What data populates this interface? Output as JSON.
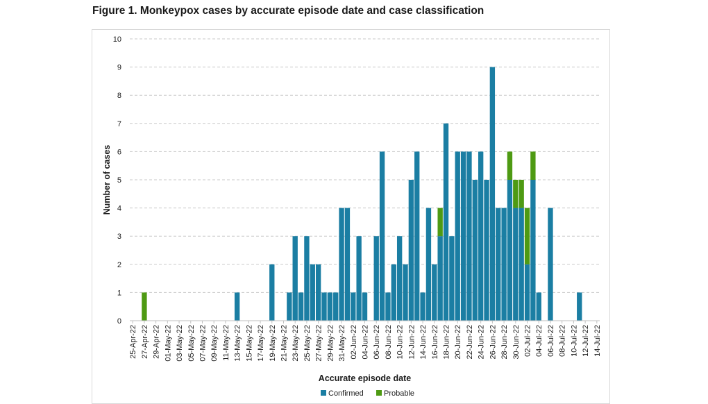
{
  "title": "Figure 1. Monkeypox cases by accurate episode date and case classification",
  "chart_data": {
    "type": "bar",
    "stacked": true,
    "title": "Figure 1. Monkeypox cases by accurate episode date and case classification",
    "xlabel": "Accurate episode date",
    "ylabel": "Number of cases",
    "ylim": [
      0,
      10
    ],
    "yticks": [
      0,
      1,
      2,
      3,
      4,
      5,
      6,
      7,
      8,
      9,
      10
    ],
    "grid": true,
    "legend_position": "bottom",
    "colors": {
      "Confirmed": "#1b7ea3",
      "Probable": "#4e9a13"
    },
    "categories": [
      "25-Apr-22",
      "26-Apr-22",
      "27-Apr-22",
      "28-Apr-22",
      "29-Apr-22",
      "30-Apr-22",
      "01-May-22",
      "02-May-22",
      "03-May-22",
      "04-May-22",
      "05-May-22",
      "06-May-22",
      "07-May-22",
      "08-May-22",
      "09-May-22",
      "10-May-22",
      "11-May-22",
      "12-May-22",
      "13-May-22",
      "14-May-22",
      "15-May-22",
      "16-May-22",
      "17-May-22",
      "18-May-22",
      "19-May-22",
      "20-May-22",
      "21-May-22",
      "22-May-22",
      "23-May-22",
      "24-May-22",
      "25-May-22",
      "26-May-22",
      "27-May-22",
      "28-May-22",
      "29-May-22",
      "30-May-22",
      "31-May-22",
      "01-Jun-22",
      "02-Jun-22",
      "03-Jun-22",
      "04-Jun-22",
      "05-Jun-22",
      "06-Jun-22",
      "07-Jun-22",
      "08-Jun-22",
      "09-Jun-22",
      "10-Jun-22",
      "11-Jun-22",
      "12-Jun-22",
      "13-Jun-22",
      "14-Jun-22",
      "15-Jun-22",
      "16-Jun-22",
      "17-Jun-22",
      "18-Jun-22",
      "19-Jun-22",
      "20-Jun-22",
      "21-Jun-22",
      "22-Jun-22",
      "23-Jun-22",
      "24-Jun-22",
      "25-Jun-22",
      "26-Jun-22",
      "27-Jun-22",
      "28-Jun-22",
      "29-Jun-22",
      "30-Jun-22",
      "01-Jul-22",
      "02-Jul-22",
      "03-Jul-22",
      "04-Jul-22",
      "05-Jul-22",
      "06-Jul-22",
      "07-Jul-22",
      "08-Jul-22",
      "09-Jul-22",
      "10-Jul-22",
      "11-Jul-22",
      "12-Jul-22",
      "13-Jul-22",
      "14-Jul-22"
    ],
    "tick_labels": [
      "25-Apr-22",
      "27-Apr-22",
      "29-Apr-22",
      "01-May-22",
      "03-May-22",
      "05-May-22",
      "07-May-22",
      "09-May-22",
      "11-May-22",
      "13-May-22",
      "15-May-22",
      "17-May-22",
      "19-May-22",
      "21-May-22",
      "23-May-22",
      "25-May-22",
      "27-May-22",
      "29-May-22",
      "31-May-22",
      "02-Jun-22",
      "04-Jun-22",
      "06-Jun-22",
      "08-Jun-22",
      "10-Jun-22",
      "12-Jun-22",
      "14-Jun-22",
      "16-Jun-22",
      "18-Jun-22",
      "20-Jun-22",
      "22-Jun-22",
      "24-Jun-22",
      "26-Jun-22",
      "28-Jun-22",
      "30-Jun-22",
      "02-Jul-22",
      "04-Jul-22",
      "06-Jul-22",
      "08-Jul-22",
      "10-Jul-22",
      "12-Jul-22",
      "14-Jul-22"
    ],
    "series": [
      {
        "name": "Confirmed",
        "values": [
          0,
          0,
          0,
          0,
          0,
          0,
          0,
          0,
          0,
          0,
          0,
          0,
          0,
          0,
          0,
          0,
          0,
          0,
          1,
          0,
          0,
          0,
          0,
          0,
          2,
          0,
          0,
          1,
          3,
          1,
          3,
          2,
          2,
          1,
          1,
          1,
          4,
          4,
          1,
          3,
          1,
          0,
          3,
          6,
          1,
          2,
          3,
          2,
          5,
          6,
          1,
          4,
          2,
          3,
          7,
          3,
          6,
          6,
          6,
          5,
          6,
          5,
          9,
          4,
          4,
          5,
          4,
          4,
          2,
          5,
          1,
          0,
          4,
          0,
          0,
          0,
          0,
          1,
          0,
          0,
          0
        ]
      },
      {
        "name": "Probable",
        "values": [
          0,
          0,
          1,
          0,
          0,
          0,
          0,
          0,
          0,
          0,
          0,
          0,
          0,
          0,
          0,
          0,
          0,
          0,
          0,
          0,
          0,
          0,
          0,
          0,
          0,
          0,
          0,
          0,
          0,
          0,
          0,
          0,
          0,
          0,
          0,
          0,
          0,
          0,
          0,
          0,
          0,
          0,
          0,
          0,
          0,
          0,
          0,
          0,
          0,
          0,
          0,
          0,
          0,
          1,
          0,
          0,
          0,
          0,
          0,
          0,
          0,
          0,
          0,
          0,
          0,
          1,
          1,
          1,
          2,
          1,
          0,
          0,
          0,
          0,
          0,
          0,
          0,
          0,
          0,
          0,
          0
        ]
      }
    ]
  }
}
